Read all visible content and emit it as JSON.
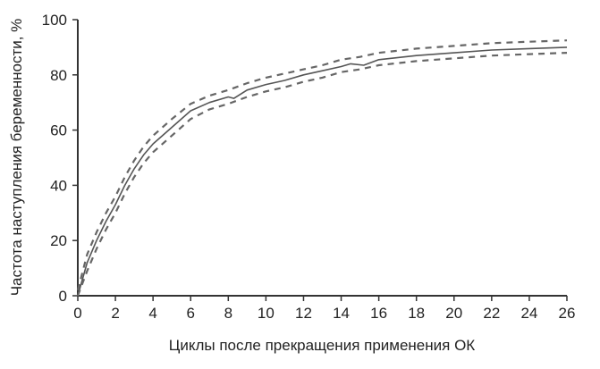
{
  "chart_data": {
    "type": "line",
    "title": "",
    "xlabel": "Циклы после прекращения применения ОК",
    "ylabel": "Частота наступления беременности, %",
    "xlim": [
      0,
      26
    ],
    "ylim": [
      0,
      100
    ],
    "x_ticks": [
      "0",
      "2",
      "4",
      "6",
      "8",
      "10",
      "12",
      "14",
      "16",
      "18",
      "20",
      "22",
      "24",
      "26"
    ],
    "y_ticks": [
      "0",
      "20",
      "40",
      "60",
      "80",
      "100"
    ],
    "grid": false,
    "colors": {
      "axis": "#333333",
      "main": "#555555",
      "bounds": "#666666"
    },
    "series": [
      {
        "style": "solid",
        "x": [
          0,
          0.5,
          1,
          1.5,
          2,
          2.5,
          3,
          3.5,
          4,
          5,
          6,
          7,
          8,
          8.3,
          9,
          10,
          11,
          12,
          13,
          14,
          14.5,
          15.2,
          16,
          18,
          20,
          22,
          24,
          26
        ],
        "y": [
          0,
          12,
          20,
          27,
          33,
          40,
          46,
          51,
          55,
          61,
          67,
          70,
          72,
          71.5,
          74.5,
          76.5,
          78,
          80,
          81.5,
          83,
          84,
          83.5,
          85.5,
          87,
          88,
          89,
          89.5,
          90
        ]
      },
      {
        "style": "dashed",
        "x": [
          0,
          0.5,
          1,
          1.5,
          2,
          2.5,
          3,
          3.5,
          4,
          5,
          6,
          7,
          8,
          9,
          10,
          11,
          12,
          13,
          14,
          15,
          16,
          18,
          20,
          22,
          24,
          26
        ],
        "y": [
          2,
          15,
          23,
          30,
          36,
          43,
          49,
          54,
          58,
          64,
          69.5,
          72.5,
          74.5,
          77,
          79,
          80.5,
          82,
          83.5,
          85.5,
          86.5,
          88,
          89.5,
          90.5,
          91.5,
          92,
          92.5
        ]
      },
      {
        "style": "dashed",
        "x": [
          0,
          0.5,
          1,
          1.5,
          2,
          2.5,
          3,
          3.5,
          4,
          5,
          6,
          7,
          8,
          9,
          10,
          11,
          12,
          13,
          14,
          15,
          16,
          18,
          20,
          22,
          24,
          26
        ],
        "y": [
          0,
          9,
          17,
          24,
          30,
          37,
          43,
          48,
          52,
          58,
          64,
          67.5,
          69.5,
          72,
          74,
          75.5,
          77.5,
          79,
          81,
          82,
          83.5,
          85,
          86,
          87,
          87.5,
          88
        ]
      }
    ]
  }
}
